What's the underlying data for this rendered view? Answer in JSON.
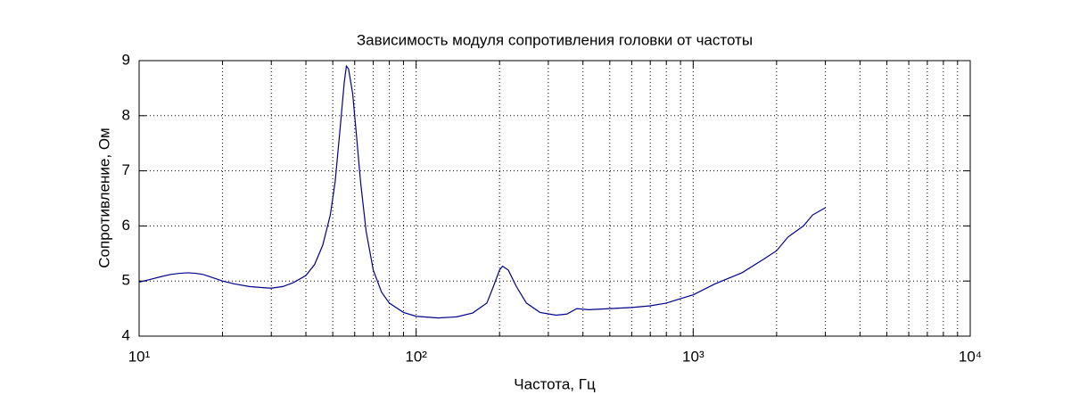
{
  "chart_data": {
    "type": "line",
    "title": "Зависимость модуля сопротивления головки от частоты",
    "xlabel": "Частота, Гц",
    "ylabel": "Сопротивление, Ом",
    "xscale": "log",
    "grid": true,
    "color": "#00008b",
    "xlim": [
      10,
      10000
    ],
    "ylim": [
      4,
      9
    ],
    "xticks": [
      {
        "value": 10,
        "label": "10¹"
      },
      {
        "value": 100,
        "label": "10²"
      },
      {
        "value": 1000,
        "label": "10³"
      },
      {
        "value": 10000,
        "label": "10⁴"
      }
    ],
    "xminorticks": [
      20,
      30,
      40,
      50,
      60,
      70,
      80,
      90,
      200,
      300,
      400,
      500,
      600,
      700,
      800,
      900,
      2000,
      3000,
      4000,
      5000,
      6000,
      7000,
      8000,
      9000
    ],
    "yticks": [
      4,
      5,
      6,
      7,
      8,
      9
    ],
    "x": [
      10,
      11,
      12,
      13,
      14,
      15,
      16,
      17,
      18,
      20,
      22,
      25,
      28,
      30,
      33,
      36,
      40,
      43,
      46,
      49,
      51,
      53,
      55,
      56,
      57,
      59,
      61,
      63,
      66,
      70,
      75,
      80,
      90,
      100,
      120,
      140,
      160,
      180,
      190,
      200,
      205,
      215,
      230,
      250,
      280,
      320,
      350,
      380,
      420,
      500,
      600,
      700,
      800,
      900,
      1000,
      1200,
      1500,
      1800,
      2000,
      2200,
      2500,
      2700,
      3000
    ],
    "values": [
      4.98,
      5.03,
      5.08,
      5.12,
      5.14,
      5.15,
      5.14,
      5.12,
      5.08,
      5.0,
      4.95,
      4.9,
      4.88,
      4.87,
      4.9,
      4.97,
      5.1,
      5.3,
      5.65,
      6.2,
      6.8,
      7.7,
      8.6,
      8.9,
      8.85,
      8.4,
      7.6,
      6.8,
      5.9,
      5.2,
      4.8,
      4.6,
      4.43,
      4.36,
      4.33,
      4.35,
      4.42,
      4.6,
      4.9,
      5.2,
      5.27,
      5.2,
      4.9,
      4.6,
      4.43,
      4.38,
      4.4,
      4.5,
      4.48,
      4.5,
      4.52,
      4.55,
      4.6,
      4.68,
      4.75,
      4.95,
      5.15,
      5.4,
      5.55,
      5.8,
      6.0,
      6.2,
      6.33
    ]
  }
}
